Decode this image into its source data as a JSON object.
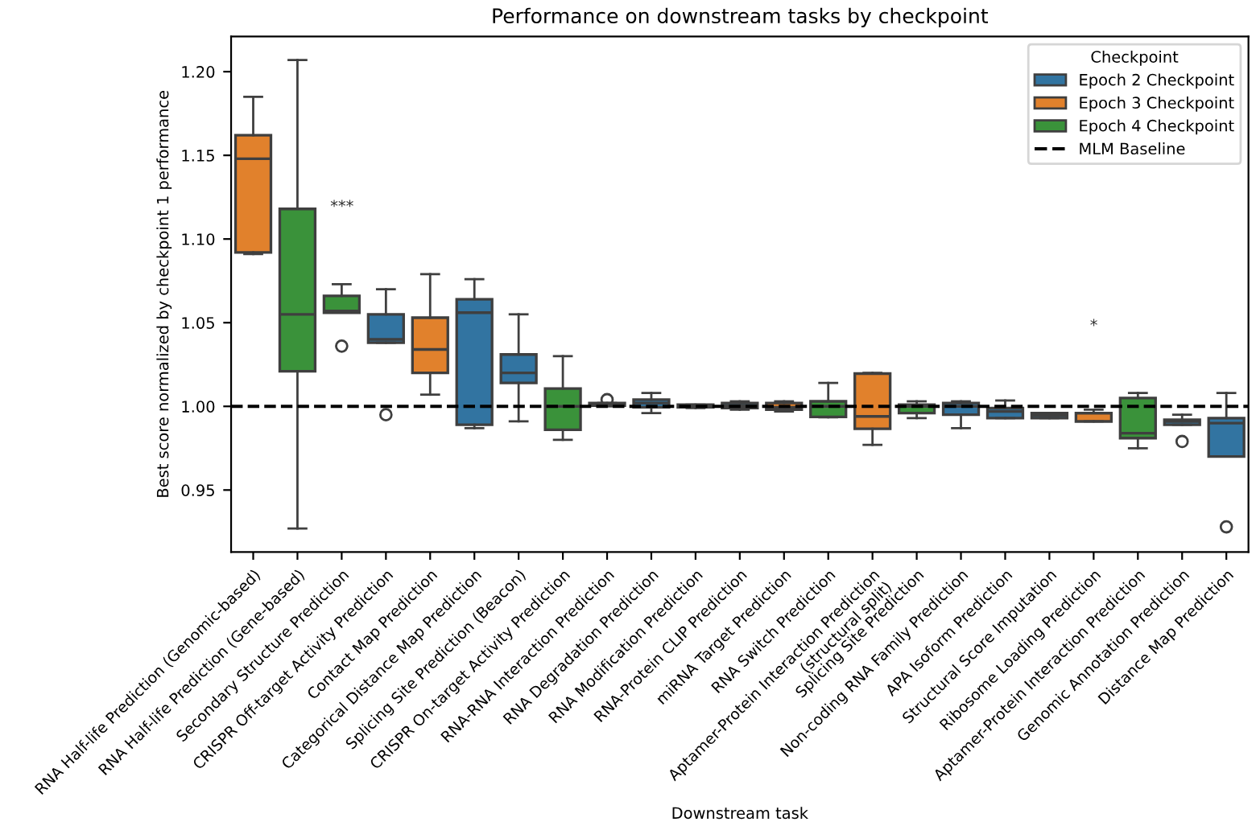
{
  "chart_data": {
    "type": "box",
    "title": "Performance on downstream tasks by checkpoint",
    "xlabel": "Downstream task",
    "ylabel": "Best score normalized by checkpoint 1 performance",
    "legend_title": "Checkpoint",
    "legend": "top right",
    "grid": false,
    "categories": [
      "RNA Half-life Prediction (Genomic-based)",
      "RNA Half-life Prediction (Gene-based)",
      "Secondary Structure Prediction",
      "CRISPR Off-target Activity Prediction",
      "Contact Map Prediction",
      "Categorical Distance Map Prediction",
      "Splicing Site Prediction (Beacon)",
      "CRISPR On-target Activity Prediction",
      "RNA-RNA Interaction Prediction",
      "RNA Degradation Prediction",
      "RNA Modification Prediction",
      "RNA-Protein CLIP Prediction",
      "miRNA Target Prediction",
      "RNA Switch Prediction",
      "Aptamer-Protein Interaction Prediction\n(structural split)",
      "Splicing Site Prediction",
      "Non-coding RNA Family Prediction",
      "APA Isoform Prediction",
      "Structural Score Imputation",
      "Ribosome Loading Prediction",
      "Aptamer-Protein Interaction Prediction",
      "Genomic Annotation Prediction",
      "Distance Map Prediction"
    ],
    "ylim": [
      0.913,
      1.221
    ],
    "yticks": [
      {
        "value": 0.95,
        "label": "0.95"
      },
      {
        "value": 1.0,
        "label": "1.00"
      },
      {
        "value": 1.05,
        "label": "1.05"
      },
      {
        "value": 1.1,
        "label": "1.10"
      },
      {
        "value": 1.15,
        "label": "1.15"
      },
      {
        "value": 1.2,
        "label": "1.20"
      }
    ],
    "series": [
      {
        "name": "Epoch 2 Checkpoint",
        "color": "#3274a1",
        "boxes": [
          null,
          null,
          null,
          {
            "low": 1.038,
            "q1": 1.038,
            "median": 1.04,
            "q3": 1.055,
            "high": 1.07,
            "outliers": [
              0.995
            ]
          },
          null,
          {
            "low": 0.987,
            "q1": 0.989,
            "median": 1.056,
            "q3": 1.064,
            "high": 1.076
          },
          {
            "low": 0.991,
            "q1": 1.014,
            "median": 1.02,
            "q3": 1.031,
            "high": 1.055
          },
          null,
          null,
          {
            "low": 0.996,
            "q1": 0.9995,
            "median": 1.002,
            "q3": 1.004,
            "high": 1.008
          },
          null,
          {
            "low": 0.998,
            "q1": 0.999,
            "median": 1.0005,
            "q3": 1.002,
            "high": 1.003
          },
          null,
          null,
          null,
          null,
          {
            "low": 0.987,
            "q1": 0.995,
            "median": 1.0,
            "q3": 1.002,
            "high": 1.003
          },
          {
            "low": 0.993,
            "q1": 0.993,
            "median": 0.997,
            "q3": 0.999,
            "high": 1.0035
          },
          {
            "low": 0.993,
            "q1": 0.993,
            "median": 0.9946,
            "q3": 0.996,
            "high": 0.996
          },
          null,
          null,
          {
            "low": 0.989,
            "q1": 0.989,
            "median": 0.991,
            "q3": 0.992,
            "high": 0.995,
            "outliers": [
              0.979
            ]
          },
          {
            "low": 0.97,
            "q1": 0.97,
            "median": 0.99,
            "q3": 0.993,
            "high": 1.008,
            "outliers": [
              0.928
            ]
          }
        ]
      },
      {
        "name": "Epoch 3 Checkpoint",
        "color": "#e1812c",
        "boxes": [
          {
            "low": 1.091,
            "q1": 1.092,
            "median": 1.148,
            "q3": 1.162,
            "high": 1.185
          },
          null,
          null,
          null,
          {
            "low": 1.007,
            "q1": 1.02,
            "median": 1.034,
            "q3": 1.053,
            "high": 1.079
          },
          null,
          null,
          null,
          null,
          null,
          null,
          null,
          {
            "low": 0.997,
            "q1": 0.998,
            "median": 0.9995,
            "q3": 1.002,
            "high": 1.003
          },
          null,
          {
            "low": 0.977,
            "q1": 0.9866,
            "median": 0.994,
            "q3": 1.0196,
            "high": 1.02
          },
          null,
          null,
          null,
          null,
          {
            "low": 0.991,
            "q1": 0.991,
            "median": 0.996,
            "q3": 0.996,
            "high": 0.998
          },
          null,
          null,
          null
        ]
      },
      {
        "name": "Epoch 4 Checkpoint",
        "color": "#3a923a",
        "boxes": [
          null,
          {
            "low": 0.927,
            "q1": 1.021,
            "median": 1.055,
            "q3": 1.118,
            "high": 1.207
          },
          {
            "low": 1.056,
            "q1": 1.056,
            "median": 1.057,
            "q3": 1.066,
            "high": 1.073,
            "outliers": [
              1.036
            ]
          },
          null,
          null,
          null,
          null,
          {
            "low": 0.98,
            "q1": 0.986,
            "median": 1.0,
            "q3": 1.0106,
            "high": 1.03
          },
          {
            "low": 1.0,
            "q1": 1.0005,
            "median": 1.001,
            "q3": 1.002,
            "high": 1.002,
            "outliers": [
              1.004
            ]
          },
          null,
          {
            "low": 0.999,
            "q1": 0.9995,
            "median": 1.0,
            "q3": 1.001,
            "high": 1.001
          },
          null,
          null,
          {
            "low": 0.9935,
            "q1": 0.9937,
            "median": 1.0,
            "q3": 1.003,
            "high": 1.014
          },
          null,
          {
            "low": 0.993,
            "q1": 0.996,
            "median": 1.0,
            "q3": 1.001,
            "high": 1.003
          },
          null,
          null,
          null,
          null,
          {
            "low": 0.975,
            "q1": 0.981,
            "median": 0.984,
            "q3": 1.005,
            "high": 1.008
          },
          null,
          null
        ]
      }
    ],
    "ref_lines": [
      {
        "axis": "y",
        "value": 1.0,
        "label": "MLM Baseline",
        "color": "#000000",
        "line_style": "dashed"
      }
    ],
    "annotations": [
      "***",
      "*"
    ]
  }
}
